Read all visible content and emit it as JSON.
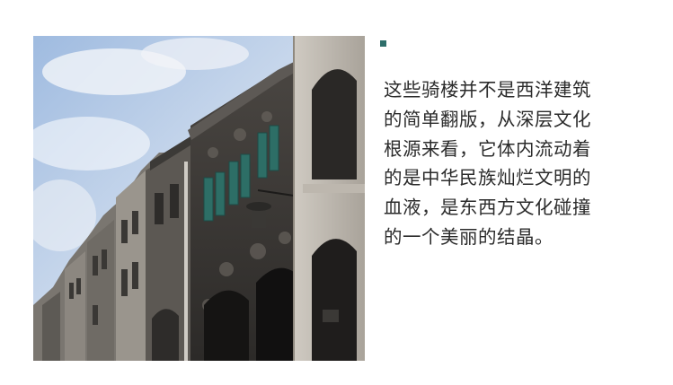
{
  "accent": {
    "color": "#2e6e6a"
  },
  "caption": {
    "lines": [
      "这些骑楼并不是西洋建筑",
      "的简单翻版，从深层文化",
      "根源来看，它体内流动着",
      "的是中华民族灿烂文明的",
      "血液，是东西方文化碰撞",
      "的一个美丽的结晶。"
    ]
  }
}
